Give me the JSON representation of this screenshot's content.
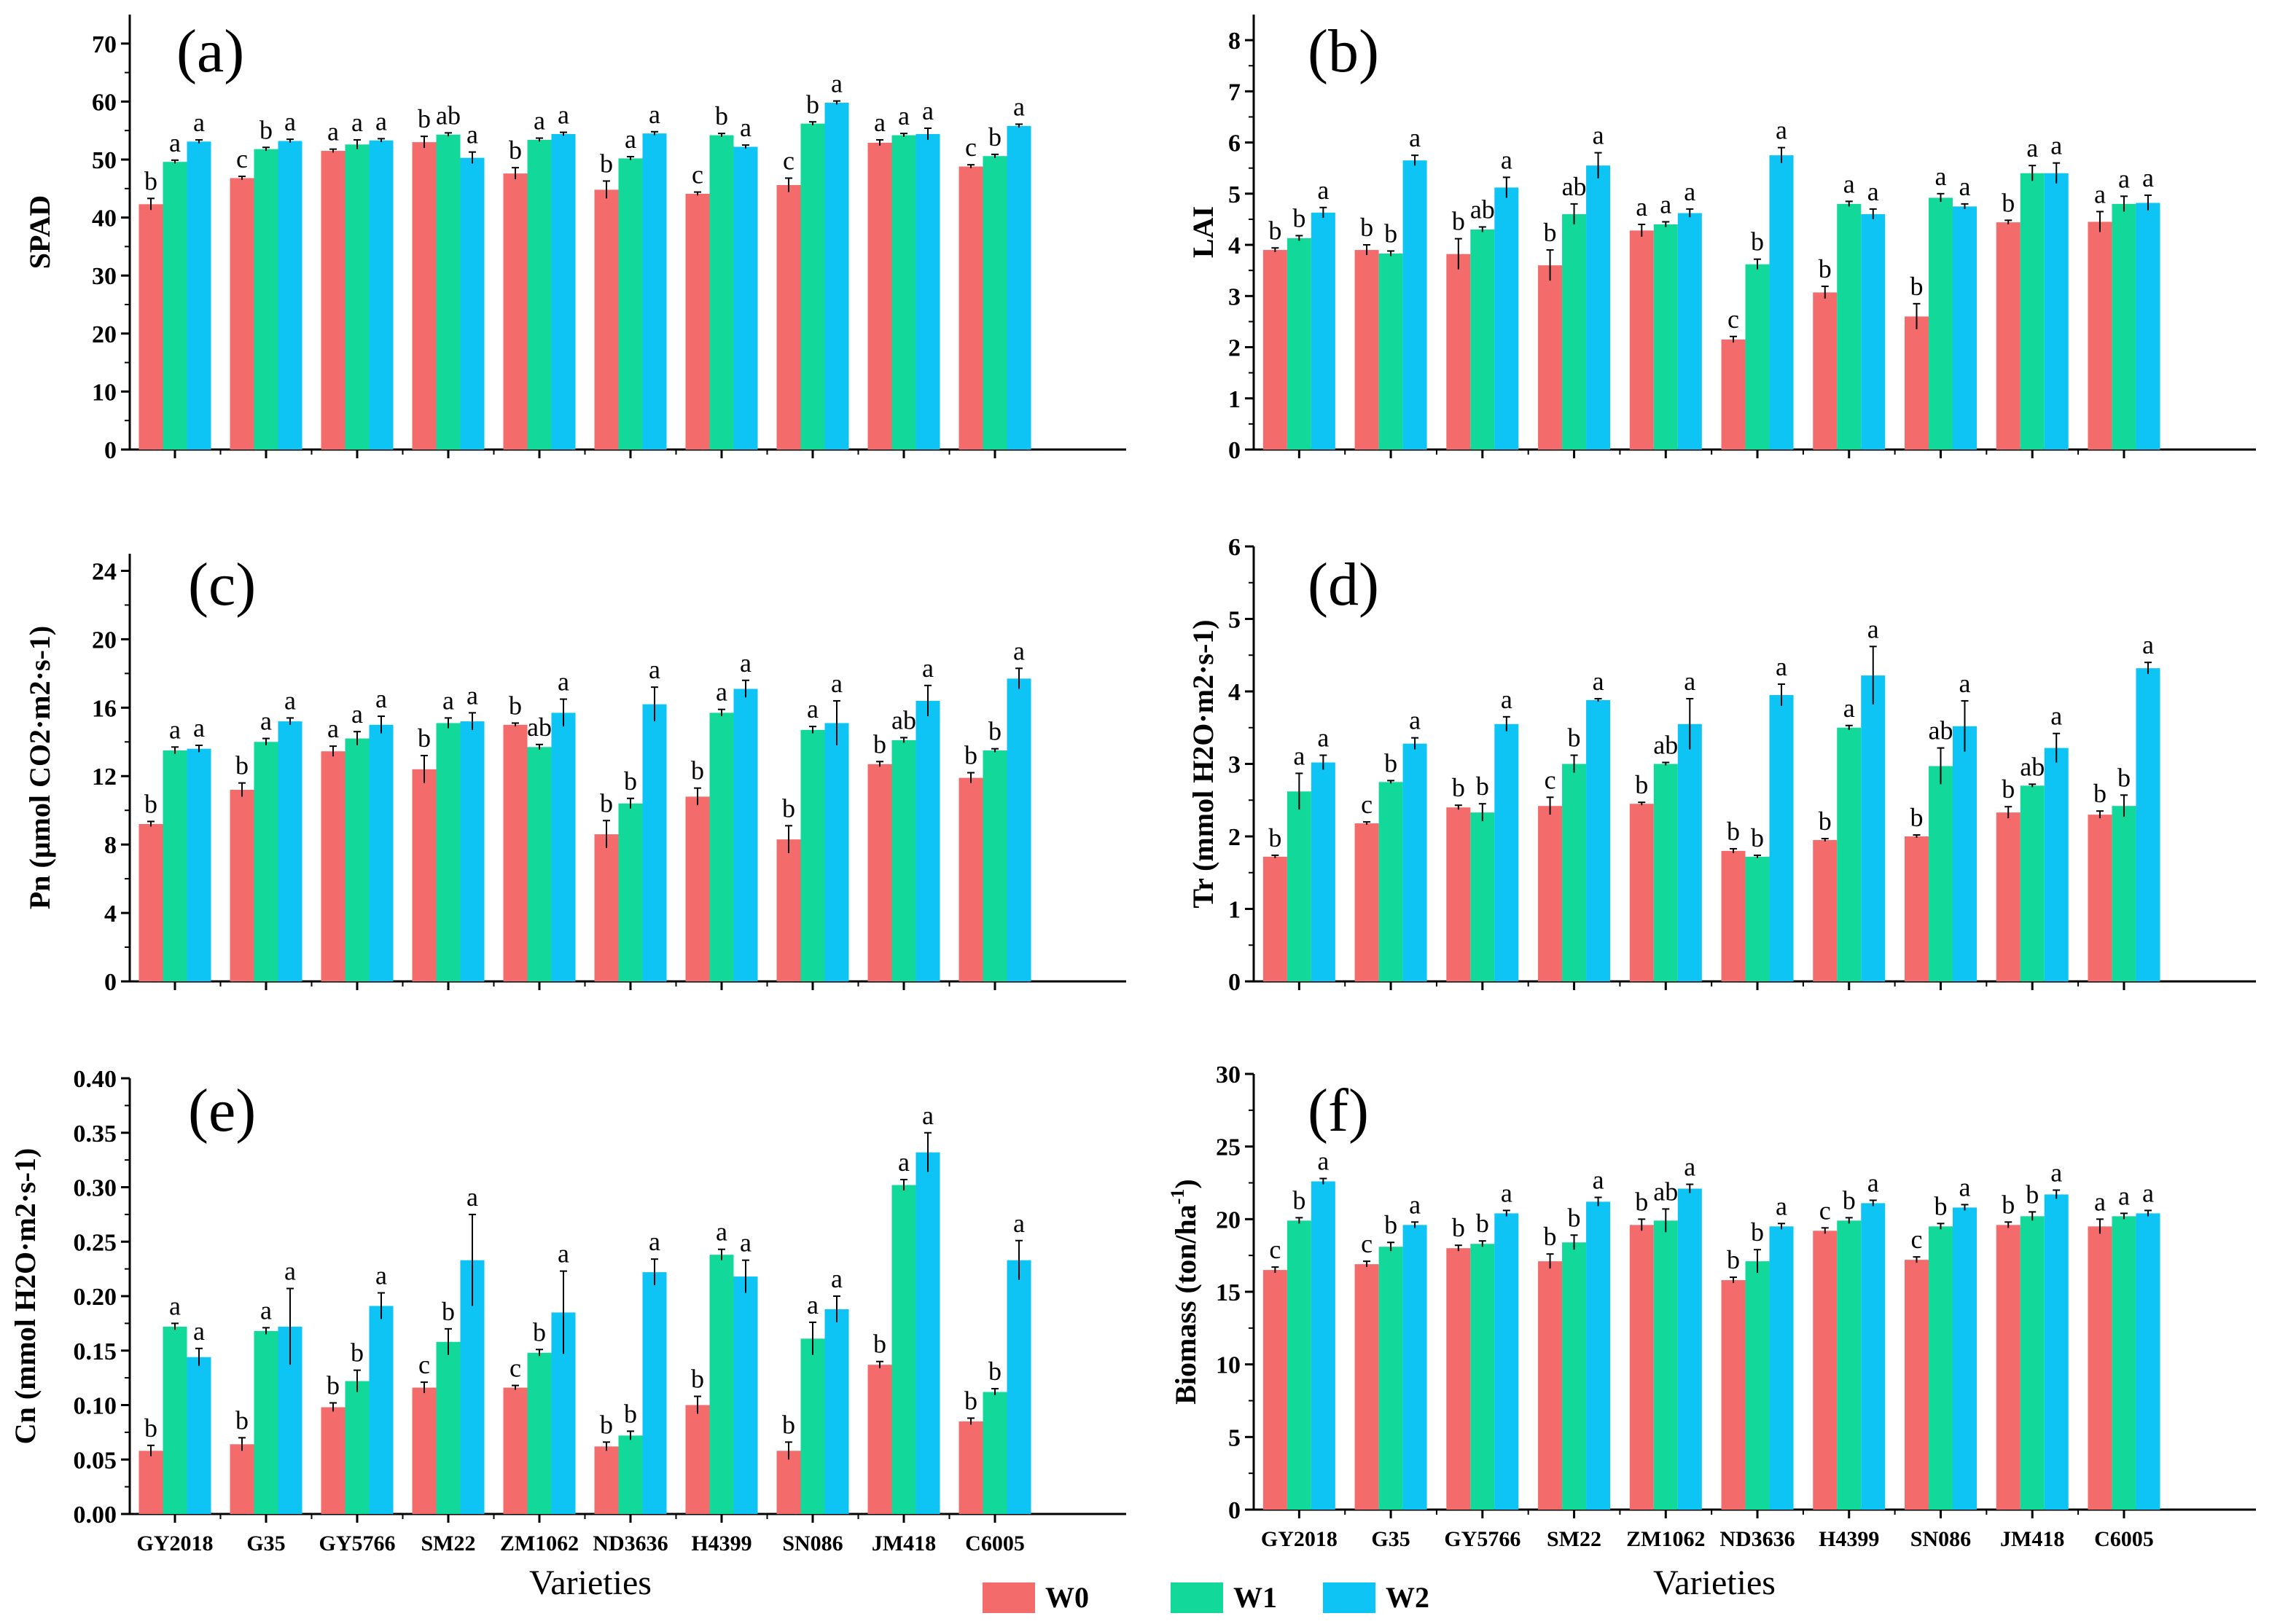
{
  "colors": {
    "W0": "#f46b6b",
    "W1": "#12d99a",
    "W2": "#0dc4f5",
    "axis": "#000000"
  },
  "x_title": "Varieties",
  "legend": {
    "items": [
      "W0",
      "W1",
      "W2"
    ]
  },
  "chart_data": [
    {
      "type": "bar",
      "panel": "(a)",
      "ylabel": "SPAD",
      "ylim": [
        0,
        75
      ],
      "yticks": [
        0,
        10,
        20,
        30,
        40,
        50,
        60,
        70
      ],
      "categories": [
        "GY2018",
        "G35",
        "GY5766",
        "SM22",
        "ZM1062",
        "ND3636",
        "H4399",
        "SN086",
        "JM418",
        "C6005"
      ],
      "series": [
        {
          "name": "W0",
          "values": [
            42.3,
            46.8,
            51.5,
            53.0,
            47.6,
            44.8,
            44.1,
            45.6,
            52.9,
            48.8
          ],
          "errors": [
            1.0,
            0.3,
            0.3,
            1.0,
            1.0,
            1.5,
            0.3,
            1.2,
            0.5,
            0.3
          ],
          "labels": [
            "b",
            "c",
            "a",
            "b",
            "b",
            "b",
            "c",
            "c",
            "a",
            "c"
          ]
        },
        {
          "name": "W1",
          "values": [
            49.6,
            51.8,
            52.6,
            54.3,
            53.4,
            50.2,
            54.2,
            56.2,
            54.2,
            50.6
          ],
          "errors": [
            0.3,
            0.3,
            0.8,
            0.3,
            0.3,
            0.3,
            0.3,
            0.3,
            0.3,
            0.3
          ],
          "labels": [
            "a",
            "b",
            "a",
            "ab",
            "a",
            "a",
            "b",
            "b",
            "a",
            "b"
          ]
        },
        {
          "name": "W2",
          "values": [
            53.1,
            53.2,
            53.3,
            50.3,
            54.4,
            54.5,
            52.2,
            59.8,
            54.4,
            55.8
          ],
          "errors": [
            0.3,
            0.3,
            0.3,
            1.0,
            0.3,
            0.3,
            0.3,
            0.3,
            1.0,
            0.3
          ],
          "labels": [
            "a",
            "a",
            "a",
            "a",
            "a",
            "a",
            "a",
            "a",
            "a",
            "a"
          ]
        }
      ]
    },
    {
      "type": "bar",
      "panel": "(b)",
      "ylabel": "LAI",
      "ylim": [
        0,
        8.5
      ],
      "yticks": [
        0,
        1,
        2,
        3,
        4,
        5,
        6,
        7,
        8
      ],
      "categories": [
        "GY2018",
        "G35",
        "GY5766",
        "SM22",
        "ZM1062",
        "ND3636",
        "H4399",
        "SN086",
        "JM418",
        "C6005"
      ],
      "series": [
        {
          "name": "W0",
          "values": [
            3.9,
            3.9,
            3.82,
            3.6,
            4.28,
            2.15,
            3.07,
            2.6,
            4.44,
            4.45
          ],
          "errors": [
            0.04,
            0.1,
            0.3,
            0.3,
            0.12,
            0.06,
            0.12,
            0.25,
            0.04,
            0.2
          ],
          "labels": [
            "b",
            "b",
            "b",
            "b",
            "a",
            "c",
            "b",
            "b",
            "b",
            "a"
          ]
        },
        {
          "name": "W1",
          "values": [
            4.13,
            3.83,
            4.3,
            4.6,
            4.4,
            3.62,
            4.8,
            4.92,
            5.4,
            4.8
          ],
          "errors": [
            0.05,
            0.05,
            0.05,
            0.2,
            0.05,
            0.1,
            0.05,
            0.08,
            0.15,
            0.15
          ],
          "labels": [
            "b",
            "b",
            "ab",
            "ab",
            "a",
            "b",
            "a",
            "a",
            "a",
            "a"
          ]
        },
        {
          "name": "W2",
          "values": [
            4.63,
            5.65,
            5.12,
            5.55,
            4.62,
            5.75,
            4.6,
            4.75,
            5.4,
            4.82
          ],
          "errors": [
            0.1,
            0.1,
            0.2,
            0.25,
            0.08,
            0.15,
            0.1,
            0.05,
            0.2,
            0.15
          ],
          "labels": [
            "a",
            "a",
            "a",
            "a",
            "a",
            "a",
            "a",
            "a",
            "a",
            "a"
          ]
        }
      ]
    },
    {
      "type": "bar",
      "panel": "(c)",
      "ylabel": "Pn (μmol CO2·m2·s-1)",
      "ylim": [
        0,
        25
      ],
      "yticks": [
        0,
        4,
        8,
        12,
        16,
        20,
        24
      ],
      "categories": [
        "GY2018",
        "G35",
        "GY5766",
        "SM22",
        "ZM1062",
        "ND3636",
        "H4399",
        "SN086",
        "JM418",
        "C6005"
      ],
      "series": [
        {
          "name": "W0",
          "values": [
            9.2,
            11.2,
            13.45,
            12.4,
            15.0,
            8.6,
            10.8,
            8.3,
            12.7,
            11.9
          ],
          "errors": [
            0.15,
            0.4,
            0.3,
            0.8,
            0.1,
            0.8,
            0.5,
            0.8,
            0.15,
            0.3
          ],
          "labels": [
            "b",
            "b",
            "a",
            "b",
            "b",
            "b",
            "b",
            "b",
            "b",
            "b"
          ]
        },
        {
          "name": "W1",
          "values": [
            13.5,
            14.0,
            14.2,
            15.1,
            13.7,
            10.4,
            15.7,
            14.7,
            14.1,
            13.5
          ],
          "errors": [
            0.2,
            0.2,
            0.4,
            0.3,
            0.15,
            0.3,
            0.2,
            0.2,
            0.15,
            0.1
          ],
          "labels": [
            "a",
            "a",
            "a",
            "a",
            "ab",
            "b",
            "a",
            "a",
            "ab",
            "b"
          ]
        },
        {
          "name": "W2",
          "values": [
            13.6,
            15.2,
            15.0,
            15.2,
            15.7,
            16.2,
            17.1,
            15.1,
            16.4,
            17.7
          ],
          "errors": [
            0.2,
            0.2,
            0.5,
            0.5,
            0.8,
            1.0,
            0.5,
            1.3,
            0.9,
            0.6
          ],
          "labels": [
            "a",
            "a",
            "a",
            "a",
            "a",
            "a",
            "a",
            "a",
            "a",
            "a"
          ]
        }
      ]
    },
    {
      "type": "bar",
      "panel": "(d)",
      "ylabel": "Tr (mmol H2O·m2·s-1)",
      "ylim": [
        0,
        6
      ],
      "yticks": [
        0,
        1,
        2,
        3,
        4,
        5,
        6
      ],
      "categories": [
        "GY2018",
        "G35",
        "GY5766",
        "SM22",
        "ZM1062",
        "ND3636",
        "H4399",
        "SN086",
        "JM418",
        "C6005"
      ],
      "series": [
        {
          "name": "W0",
          "values": [
            1.72,
            2.18,
            2.4,
            2.42,
            2.45,
            1.8,
            1.95,
            2.0,
            2.33,
            2.3
          ],
          "errors": [
            0.02,
            0.02,
            0.03,
            0.12,
            0.02,
            0.03,
            0.02,
            0.02,
            0.08,
            0.05
          ],
          "labels": [
            "b",
            "c",
            "b",
            "c",
            "b",
            "b",
            "b",
            "b",
            "b",
            "b"
          ]
        },
        {
          "name": "W1",
          "values": [
            2.62,
            2.75,
            2.33,
            3.0,
            3.0,
            1.72,
            3.5,
            2.97,
            2.7,
            2.42
          ],
          "errors": [
            0.25,
            0.02,
            0.12,
            0.12,
            0.02,
            0.02,
            0.03,
            0.25,
            0.02,
            0.15
          ],
          "labels": [
            "a",
            "b",
            "b",
            "b",
            "ab",
            "b",
            "a",
            "ab",
            "ab",
            "b"
          ]
        },
        {
          "name": "W2",
          "values": [
            3.02,
            3.28,
            3.55,
            3.88,
            3.55,
            3.95,
            4.22,
            3.52,
            3.22,
            4.32
          ],
          "errors": [
            0.1,
            0.08,
            0.1,
            0.02,
            0.35,
            0.15,
            0.4,
            0.35,
            0.2,
            0.08
          ],
          "labels": [
            "a",
            "a",
            "a",
            "a",
            "a",
            "a",
            "a",
            "a",
            "a",
            "a"
          ]
        }
      ]
    },
    {
      "type": "bar",
      "panel": "(e)",
      "ylabel": "Cn (mmol H2O·m2·s-1)",
      "ylim": [
        0,
        0.4
      ],
      "yticks": [
        0.0,
        0.05,
        0.1,
        0.15,
        0.2,
        0.25,
        0.3,
        0.35,
        0.4
      ],
      "tick_labels": [
        "0.00",
        "0.05",
        "0.10",
        "0.15",
        "0.20",
        "0.25",
        "0.30",
        "0.35",
        "0.40"
      ],
      "categories": [
        "GY2018",
        "G35",
        "GY5766",
        "SM22",
        "ZM1062",
        "ND3636",
        "H4399",
        "SN086",
        "JM418",
        "C6005"
      ],
      "series": [
        {
          "name": "W0",
          "values": [
            0.058,
            0.064,
            0.098,
            0.116,
            0.116,
            0.062,
            0.1,
            0.058,
            0.137,
            0.085
          ],
          "errors": [
            0.005,
            0.006,
            0.004,
            0.005,
            0.002,
            0.004,
            0.008,
            0.008,
            0.003,
            0.003
          ],
          "labels": [
            "b",
            "b",
            "b",
            "c",
            "c",
            "b",
            "b",
            "b",
            "b",
            "b"
          ]
        },
        {
          "name": "W1",
          "values": [
            0.172,
            0.168,
            0.122,
            0.158,
            0.148,
            0.072,
            0.238,
            0.161,
            0.302,
            0.112
          ],
          "errors": [
            0.003,
            0.003,
            0.01,
            0.012,
            0.003,
            0.004,
            0.005,
            0.015,
            0.005,
            0.003
          ],
          "labels": [
            "a",
            "a",
            "b",
            "b",
            "b",
            "b",
            "a",
            "a",
            "a",
            "b"
          ]
        },
        {
          "name": "W2",
          "values": [
            0.144,
            0.172,
            0.191,
            0.233,
            0.185,
            0.222,
            0.218,
            0.188,
            0.332,
            0.233
          ],
          "errors": [
            0.008,
            0.035,
            0.012,
            0.042,
            0.038,
            0.012,
            0.015,
            0.012,
            0.018,
            0.018
          ],
          "labels": [
            "a",
            "a",
            "a",
            "a",
            "a",
            "a",
            "a",
            "a",
            "a",
            "a"
          ]
        }
      ]
    },
    {
      "type": "bar",
      "panel": "(f)",
      "ylabel": "Biomass (ton/ha",
      "ylabel_sup": "-1",
      "ylabel_end": ")",
      "ylim": [
        0,
        30
      ],
      "yticks": [
        0,
        5,
        10,
        15,
        20,
        25,
        30
      ],
      "categories": [
        "GY2018",
        "G35",
        "GY5766",
        "SM22",
        "ZM1062",
        "ND3636",
        "H4399",
        "SN086",
        "JM418",
        "C6005"
      ],
      "series": [
        {
          "name": "W0",
          "values": [
            16.5,
            16.9,
            18.0,
            17.1,
            19.6,
            15.8,
            19.2,
            17.2,
            19.6,
            19.5
          ],
          "errors": [
            0.2,
            0.2,
            0.2,
            0.5,
            0.4,
            0.2,
            0.2,
            0.2,
            0.2,
            0.5
          ],
          "labels": [
            "c",
            "c",
            "b",
            "b",
            "b",
            "b",
            "c",
            "c",
            "b",
            "a"
          ]
        },
        {
          "name": "W1",
          "values": [
            19.9,
            18.1,
            18.3,
            18.4,
            19.9,
            17.1,
            19.9,
            19.5,
            20.2,
            20.2
          ],
          "errors": [
            0.2,
            0.3,
            0.2,
            0.5,
            0.8,
            0.8,
            0.2,
            0.2,
            0.3,
            0.2
          ],
          "labels": [
            "b",
            "b",
            "b",
            "b",
            "ab",
            "b",
            "b",
            "b",
            "b",
            "a"
          ]
        },
        {
          "name": "W2",
          "values": [
            22.6,
            19.6,
            20.4,
            21.2,
            22.1,
            19.5,
            21.1,
            20.8,
            21.7,
            20.4
          ],
          "errors": [
            0.2,
            0.2,
            0.2,
            0.3,
            0.3,
            0.2,
            0.2,
            0.2,
            0.3,
            0.2
          ],
          "labels": [
            "a",
            "a",
            "a",
            "a",
            "a",
            "a",
            "a",
            "a",
            "a",
            "a"
          ]
        }
      ]
    }
  ]
}
